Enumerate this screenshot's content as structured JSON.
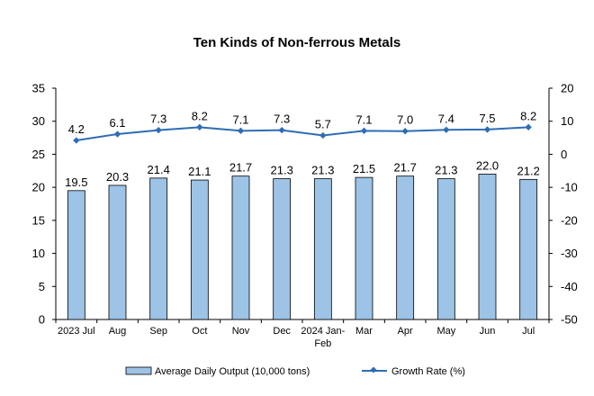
{
  "chart_data": {
    "type": "bar",
    "title": "Ten Kinds of Non-ferrous Metals",
    "categories": [
      "2023 Jul",
      "Aug",
      "Sep",
      "Oct",
      "Nov",
      "Dec",
      "2024 Jan-Feb",
      "Mar",
      "Apr",
      "May",
      "Jun",
      "Jul"
    ],
    "series": [
      {
        "name": "Average Daily Output (10,000 tons)",
        "type": "bar",
        "axis": "left",
        "values": [
          19.5,
          20.3,
          21.4,
          21.1,
          21.7,
          21.3,
          21.3,
          21.5,
          21.7,
          21.3,
          22.0,
          21.2
        ],
        "labels": [
          "19.5",
          "20.3",
          "21.4",
          "21.1",
          "21.7",
          "21.3",
          "21.3",
          "21.5",
          "21.7",
          "21.3",
          "22.0",
          "21.2"
        ]
      },
      {
        "name": "Growth Rate (%)",
        "type": "line",
        "axis": "right",
        "values": [
          4.2,
          6.1,
          7.3,
          8.2,
          7.1,
          7.3,
          5.7,
          7.1,
          7.0,
          7.4,
          7.5,
          8.2
        ],
        "labels": [
          "4.2",
          "6.1",
          "7.3",
          "8.2",
          "7.1",
          "7.3",
          "5.7",
          "7.1",
          "7.0",
          "7.4",
          "7.5",
          "8.2"
        ]
      }
    ],
    "y_left": {
      "min": 0,
      "max": 35,
      "step": 5,
      "ticks": [
        "0",
        "5",
        "10",
        "15",
        "20",
        "25",
        "30",
        "35"
      ]
    },
    "y_right": {
      "min": -50,
      "max": 20,
      "step": 10,
      "ticks": [
        "-50",
        "-40",
        "-30",
        "-20",
        "-10",
        "0",
        "10",
        "20"
      ]
    },
    "grid": false,
    "legend_position": "bottom",
    "colors": {
      "bar_fill": "#9dc3e6",
      "bar_stroke": "#000000",
      "line": "#2e6db4",
      "axis": "#000000"
    }
  }
}
